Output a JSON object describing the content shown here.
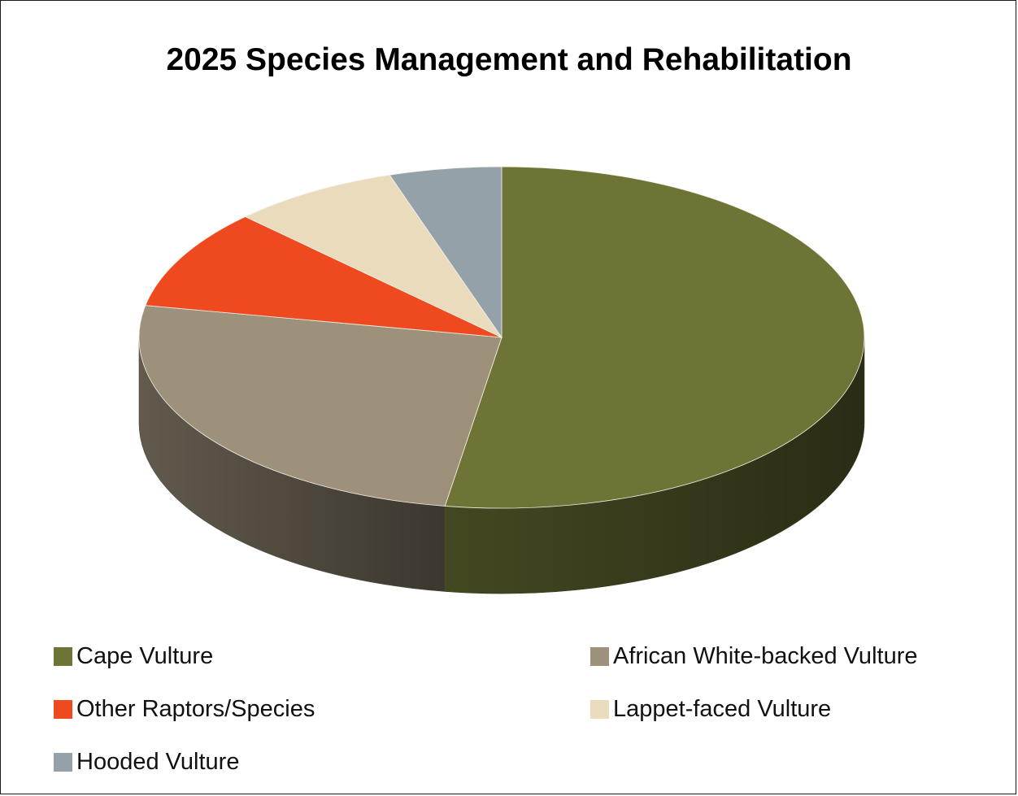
{
  "chart_data": {
    "type": "pie",
    "title": "2025 Species Management and Rehabilitation",
    "legend_position": "bottom",
    "slices": [
      {
        "label": "Cape Vulture",
        "value": 52.5,
        "color": "#6e7436"
      },
      {
        "label": "African White-backed Vulture",
        "value": 25.5,
        "color": "#9d917c"
      },
      {
        "label": "Other Raptors/Species",
        "value": 9.5,
        "color": "#ef4a1f"
      },
      {
        "label": "Lappet-faced Vulture",
        "value": 7.5,
        "color": "#eadbbd"
      },
      {
        "label": "Hooded Vulture",
        "value": 5.0,
        "color": "#95a1a9"
      }
    ]
  }
}
